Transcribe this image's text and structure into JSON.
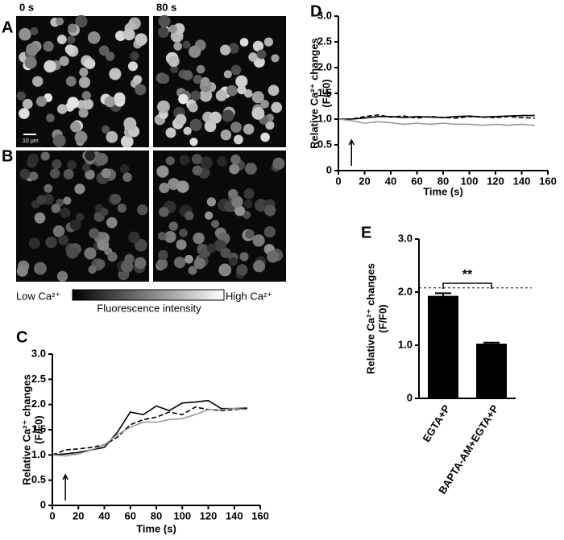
{
  "figure": {
    "panel_labels": [
      "A",
      "B"
    ],
    "time_labels": [
      "0 s",
      "80 s"
    ],
    "scale_bar": "10 μm",
    "colorbar": {
      "low": "Low Ca²⁺",
      "high": "High Ca²⁺",
      "title": "Fluorescence intensity"
    }
  },
  "chart_data": [
    {
      "type": "line",
      "panel_label": "C",
      "ylabel": [
        "Relative Ca²⁺ changes",
        "(F/F0)"
      ],
      "xlabel": "Time (s)",
      "x": [
        0,
        10,
        20,
        30,
        40,
        50,
        60,
        70,
        80,
        90,
        100,
        110,
        120,
        130,
        140,
        150
      ],
      "series": [
        {
          "color": "#000000",
          "dash": false,
          "values": [
            1.0,
            1.02,
            1.05,
            1.1,
            1.15,
            1.45,
            1.85,
            1.8,
            1.97,
            1.88,
            2.03,
            2.05,
            2.08,
            1.92,
            1.92,
            1.93
          ]
        },
        {
          "color": "#000000",
          "dash": true,
          "values": [
            1.0,
            1.1,
            1.12,
            1.15,
            1.2,
            1.35,
            1.6,
            1.7,
            1.75,
            1.85,
            1.8,
            1.95,
            1.9,
            1.88,
            1.9,
            1.92
          ]
        },
        {
          "color": "#999999",
          "dash": false,
          "values": [
            1.0,
            0.98,
            1.02,
            1.1,
            1.2,
            1.4,
            1.55,
            1.65,
            1.65,
            1.7,
            1.72,
            1.8,
            1.9,
            1.9,
            1.92,
            1.9
          ]
        }
      ],
      "arrow_x": 10,
      "xlim": [
        0,
        160
      ],
      "xticks": [
        0,
        20,
        40,
        60,
        80,
        100,
        120,
        140,
        160
      ],
      "ylim": [
        0,
        3
      ],
      "yticks": [
        0,
        0.5,
        {
          "value": 1,
          "label": "1.0"
        },
        1.5,
        {
          "value": 2,
          "label": "2.0"
        },
        2.5,
        {
          "value": 3,
          "label": "3.0"
        }
      ]
    },
    {
      "type": "line",
      "panel_label": "D",
      "ylabel": [
        "Relative Ca²⁺ changes",
        "(F/F0)"
      ],
      "xlabel": "Time (s)",
      "x": [
        0,
        10,
        20,
        30,
        40,
        50,
        60,
        70,
        80,
        90,
        100,
        110,
        120,
        130,
        140,
        150
      ],
      "series": [
        {
          "color": "#000000",
          "dash": false,
          "values": [
            1.0,
            1.0,
            1.02,
            1.05,
            1.05,
            1.03,
            1.05,
            1.04,
            1.03,
            1.05,
            1.06,
            1.04,
            1.05,
            1.06,
            1.07,
            1.07
          ]
        },
        {
          "color": "#000000",
          "dash": true,
          "values": [
            1.0,
            1.0,
            1.05,
            1.08,
            1.04,
            1.06,
            1.02,
            1.05,
            1.03,
            1.02,
            1.05,
            1.04,
            1.03,
            1.05,
            1.03,
            1.02
          ]
        },
        {
          "color": "#999999",
          "dash": false,
          "values": [
            1.0,
            0.97,
            0.92,
            0.95,
            0.93,
            0.9,
            0.92,
            0.9,
            0.92,
            0.9,
            0.9,
            0.88,
            0.9,
            0.88,
            0.9,
            0.88
          ]
        }
      ],
      "arrow_x": 10,
      "xlim": [
        0,
        160
      ],
      "xticks": [
        0,
        20,
        40,
        60,
        80,
        100,
        120,
        140,
        160
      ],
      "ylim": [
        0,
        3
      ],
      "yticks": [
        0,
        0.5,
        {
          "value": 1,
          "label": "1.0"
        },
        1.5,
        {
          "value": 2,
          "label": "2.0"
        },
        2.5,
        {
          "value": 3,
          "label": "3.0"
        }
      ]
    },
    {
      "type": "bar",
      "panel_label": "E",
      "ylabel": [
        "Relative Ca²⁺ changes",
        "(F/F0)"
      ],
      "categories": [
        "EGTA+P",
        "BAPTA-AM+EGTA+P"
      ],
      "values": [
        1.93,
        1.03
      ],
      "errors": [
        0.05,
        0.02
      ],
      "color": "#000000",
      "reference_line": 2.08,
      "significance": "**",
      "ylim": [
        0,
        3
      ],
      "yticks": [
        0,
        {
          "value": 1,
          "label": "1.0"
        },
        {
          "value": 2,
          "label": "2.0"
        },
        {
          "value": 3,
          "label": "3.0"
        }
      ]
    }
  ]
}
